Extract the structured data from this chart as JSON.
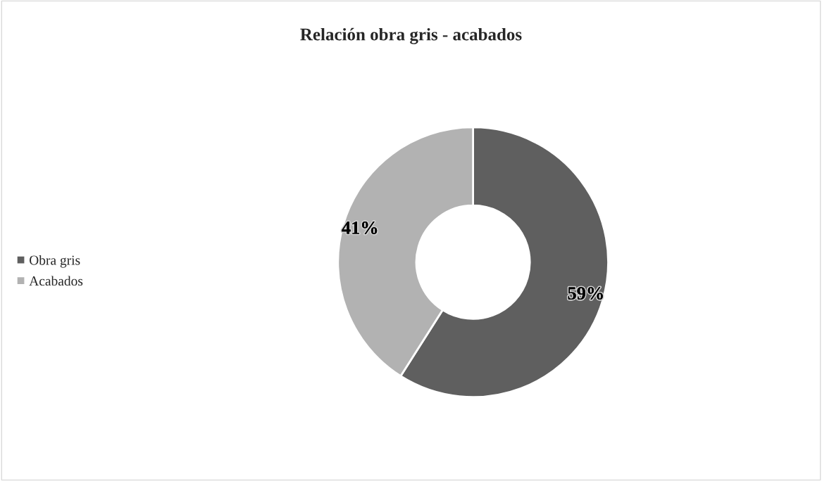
{
  "chart_data": {
    "type": "donut",
    "title": "Relación obra gris - acabados",
    "categories": [
      "Obra gris",
      "Acabados"
    ],
    "values": [
      59,
      41
    ],
    "colors": [
      "#5f5f5f",
      "#b2b2b2"
    ],
    "value_labels": [
      "59%",
      "41%"
    ],
    "legend": "left"
  }
}
